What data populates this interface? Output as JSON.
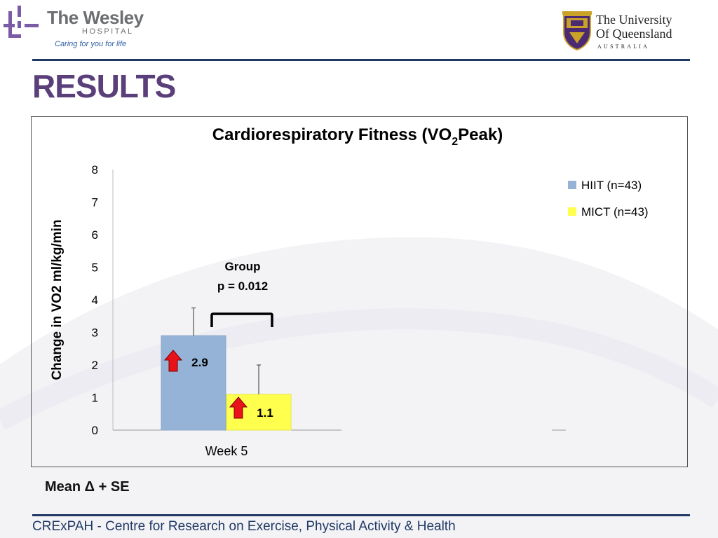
{
  "header": {
    "wesley": {
      "name": "The Wesley",
      "sub": "HOSPITAL",
      "tagline": "Caring for you for life"
    },
    "uq": {
      "line1": "The University",
      "line2": "Of Queensland",
      "line3": "AUSTRALIA"
    }
  },
  "slide_title": "RESULTS",
  "chart_data": {
    "type": "bar",
    "title": "Cardiorespiratory Fitness (VO2Peak)",
    "title_parts": {
      "pre": "Cardiorespiratory Fitness (VO",
      "sub": "2",
      "post": "Peak)"
    },
    "ylabel": "Change in VO2 ml/kg/min",
    "xlabel": "",
    "ylim": [
      0,
      8
    ],
    "yticks": [
      "0",
      "1",
      "2",
      "3",
      "4",
      "5",
      "6",
      "7",
      "8"
    ],
    "categories": [
      "Week 5"
    ],
    "series": [
      {
        "name": "HIIT (n=43)",
        "values": [
          2.9
        ],
        "error": [
          0.85
        ],
        "color": "#95b3d7",
        "label": "2.9"
      },
      {
        "name": "MICT (n=43)",
        "values": [
          1.1
        ],
        "error": [
          0.9
        ],
        "color": "#ffff4d",
        "label": "1.1"
      }
    ],
    "annotation": {
      "line1": "Group",
      "line2": "p = 0.012"
    },
    "legend_position": "top-right",
    "grid": false
  },
  "footnote": "Mean Δ + SE",
  "footer": "CRExPAH - Centre for Research on Exercise, Physical Activity & Health",
  "colors": {
    "title": "#5a3f7a",
    "rule": "#1f3864",
    "arrow": "#e8141a"
  }
}
